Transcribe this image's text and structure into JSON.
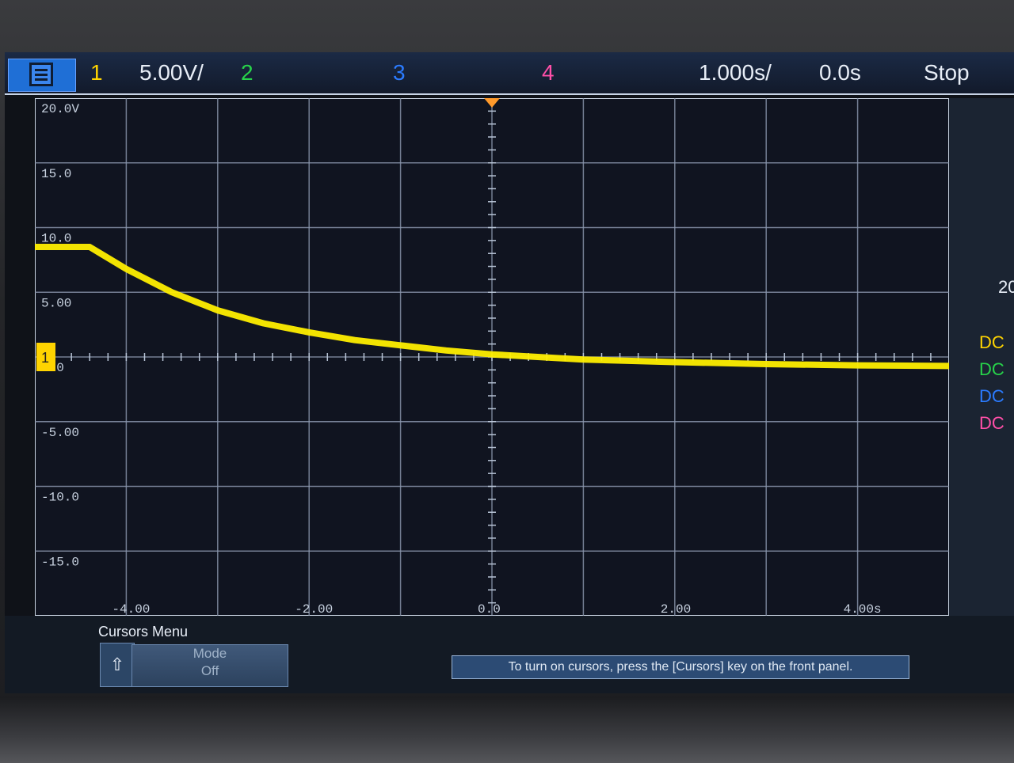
{
  "topbar": {
    "ch1": "1",
    "scale": "5.00V/",
    "ch2": "2",
    "ch3": "3",
    "ch4": "4",
    "time_div": "1.000s/",
    "time_pos": "0.0s",
    "run_state": "Stop"
  },
  "y_labels": [
    "20.0V",
    "15.0",
    "10.0",
    "5.00",
    "0.0",
    "-5.00",
    "-10.0",
    "-15.0"
  ],
  "x_labels": [
    "-4.00",
    "-2.00",
    "0.0",
    "2.00",
    "4.00s"
  ],
  "ground_marker": "1",
  "side_panel": {
    "value": "20",
    "coupling": [
      {
        "label": "DC",
        "color": "#ffd400"
      },
      {
        "label": "DC",
        "color": "#27d34a"
      },
      {
        "label": "DC",
        "color": "#2b7bff"
      },
      {
        "label": "DC",
        "color": "#ff4fa8"
      }
    ]
  },
  "softkeys": {
    "menu_title": "Cursors Menu",
    "back_icon": "up-arrow-icon",
    "mode_label": "Mode",
    "mode_value": "Off"
  },
  "message": "To turn on cursors, press the [Cursors] key on the front panel.",
  "chart_data": {
    "type": "line",
    "title": "",
    "xlabel": "",
    "ylabel": "",
    "xlim": [
      -5,
      5
    ],
    "ylim": [
      -20,
      20
    ],
    "series": [
      {
        "color": "#ffee00",
        "x": [
          -5.0,
          -4.4,
          -4.0,
          -3.5,
          -3.0,
          -2.5,
          -2.0,
          -1.5,
          -1.0,
          -0.5,
          0.0,
          0.5,
          1.0,
          2.0,
          3.0,
          4.0,
          5.0
        ],
        "y": [
          8.5,
          8.5,
          6.8,
          5.0,
          3.6,
          2.6,
          1.9,
          1.3,
          0.9,
          0.5,
          0.2,
          0.0,
          -0.2,
          -0.4,
          -0.55,
          -0.65,
          -0.7
        ]
      }
    ]
  },
  "colors": {
    "ch1": "#ffd400",
    "ch2": "#27d34a",
    "ch3": "#2b7bff",
    "ch4": "#ff4fa8",
    "trigger": "#ff9a2b"
  }
}
